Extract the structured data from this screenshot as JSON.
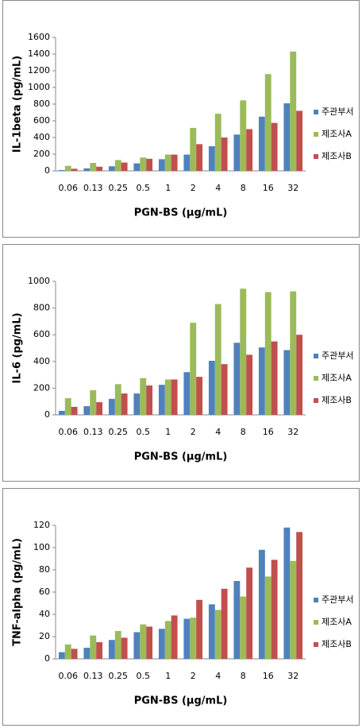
{
  "chart_data": [
    {
      "type": "bar",
      "y_label": "IL-1beta (pg/mL)",
      "x_label": "PGN-BS (μg/mL)",
      "categories": [
        "0.06",
        "0.13",
        "0.25",
        "0.5",
        "1",
        "2",
        "4",
        "8",
        "16",
        "32"
      ],
      "series": [
        {
          "name": "주관부서",
          "color": "#4f81bd",
          "values": [
            10,
            30,
            55,
            90,
            140,
            195,
            295,
            435,
            650,
            810
          ]
        },
        {
          "name": "제조사A",
          "color": "#9bbb59",
          "values": [
            60,
            95,
            130,
            160,
            195,
            515,
            685,
            845,
            1160,
            1430
          ]
        },
        {
          "name": "제조사B",
          "color": "#c0504d",
          "values": [
            25,
            50,
            100,
            145,
            195,
            320,
            400,
            500,
            575,
            720
          ]
        }
      ],
      "ylim": [
        0,
        1600
      ],
      "yticks": [
        0,
        200,
        400,
        600,
        800,
        1000,
        1200,
        1400,
        1600
      ]
    },
    {
      "type": "bar",
      "y_label": "IL-6 (pg/mL)",
      "x_label": "PGN-BS (μg/mL)",
      "categories": [
        "0.06",
        "0.13",
        "0.25",
        "0.5",
        "1",
        "2",
        "4",
        "8",
        "16",
        "32"
      ],
      "series": [
        {
          "name": "주관부서",
          "color": "#4f81bd",
          "values": [
            30,
            65,
            120,
            160,
            225,
            320,
            405,
            540,
            505,
            485
          ]
        },
        {
          "name": "제조사A",
          "color": "#9bbb59",
          "values": [
            125,
            185,
            230,
            275,
            265,
            690,
            830,
            945,
            920,
            925
          ]
        },
        {
          "name": "제조사B",
          "color": "#c0504d",
          "values": [
            60,
            95,
            160,
            220,
            265,
            285,
            380,
            450,
            550,
            600
          ]
        }
      ],
      "ylim": [
        0,
        1000
      ],
      "yticks": [
        0,
        200,
        400,
        600,
        800,
        1000
      ]
    },
    {
      "type": "bar",
      "y_label": "TNF-alpha (pg/mL)",
      "x_label": "PGN-BS (μg/mL)",
      "categories": [
        "0.06",
        "0.13",
        "0.25",
        "0.5",
        "1",
        "2",
        "4",
        "8",
        "16",
        "32"
      ],
      "series": [
        {
          "name": "주관부서",
          "color": "#4f81bd",
          "values": [
            6,
            10,
            17,
            24,
            27,
            36,
            49,
            70,
            98,
            118
          ]
        },
        {
          "name": "제조사A",
          "color": "#9bbb59",
          "values": [
            13,
            21,
            25,
            31,
            34,
            37,
            44,
            56,
            74,
            88
          ]
        },
        {
          "name": "제조사B",
          "color": "#c0504d",
          "values": [
            9,
            15,
            19,
            29,
            39,
            53,
            63,
            82,
            89,
            114
          ]
        }
      ],
      "ylim": [
        0,
        120
      ],
      "yticks": [
        0,
        20,
        40,
        60,
        80,
        100,
        120
      ]
    }
  ]
}
